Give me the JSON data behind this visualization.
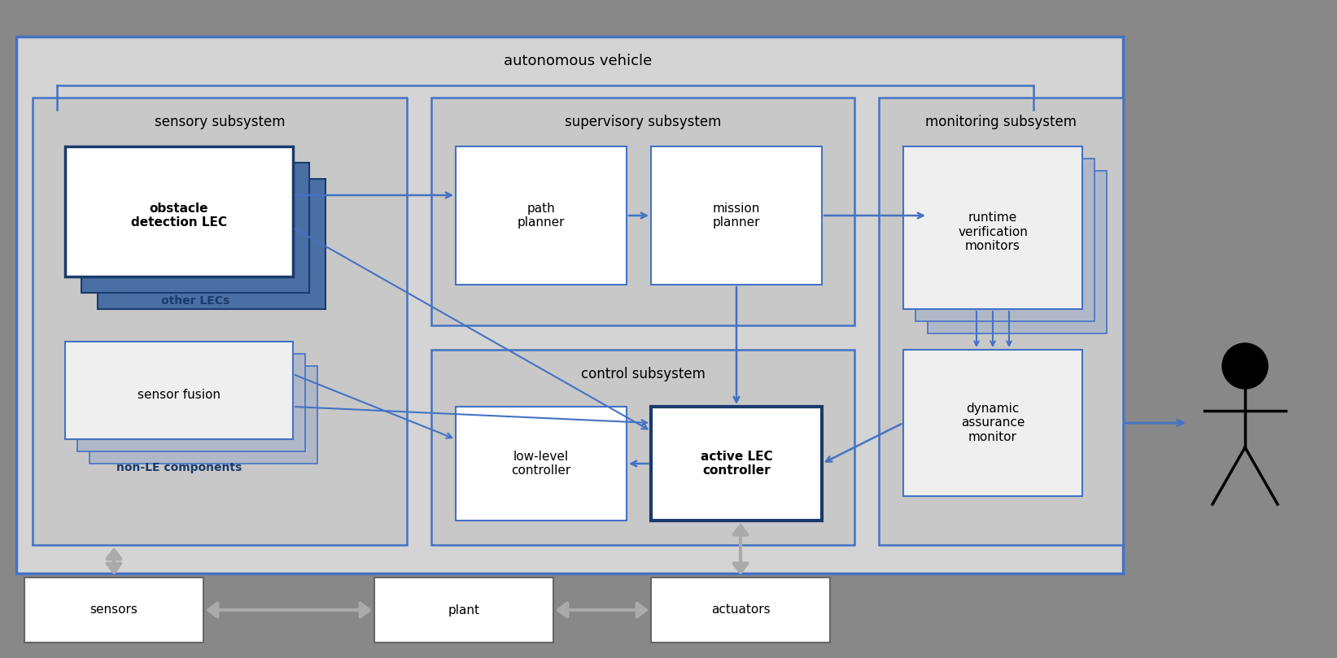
{
  "bg_outer": "#888888",
  "bg_main": "#d4d4d4",
  "bg_subsystem": "#c8c8c8",
  "box_fill_white": "#ffffff",
  "box_fill_light": "#efefef",
  "box_border_dark": "#1a3a6b",
  "box_border_blue": "#4472c4",
  "arrow_color": "#4472c4",
  "title_main": "autonomous vehicle",
  "title_sensory": "sensory subsystem",
  "title_supervisory": "supervisory subsystem",
  "title_monitoring": "monitoring subsystem",
  "title_control": "control subsystem",
  "label_obstacle": "obstacle\ndetection LEC",
  "label_other_lecs": "other LECs",
  "label_sensor_fusion": "sensor fusion",
  "label_non_le": "non-LE components",
  "label_path": "path\nplanner",
  "label_mission": "mission\nplanner",
  "label_runtime": "runtime\nverification\nmonitors",
  "label_dynamic": "dynamic\nassurance\nmonitor",
  "label_lowlevel": "low-level\ncontroller",
  "label_active": "active LEC\ncontroller",
  "label_sensors": "sensors",
  "label_plant": "plant",
  "label_actuators": "actuators",
  "font_size_title": 13,
  "font_size_label": 11,
  "font_size_subsystem": 12
}
